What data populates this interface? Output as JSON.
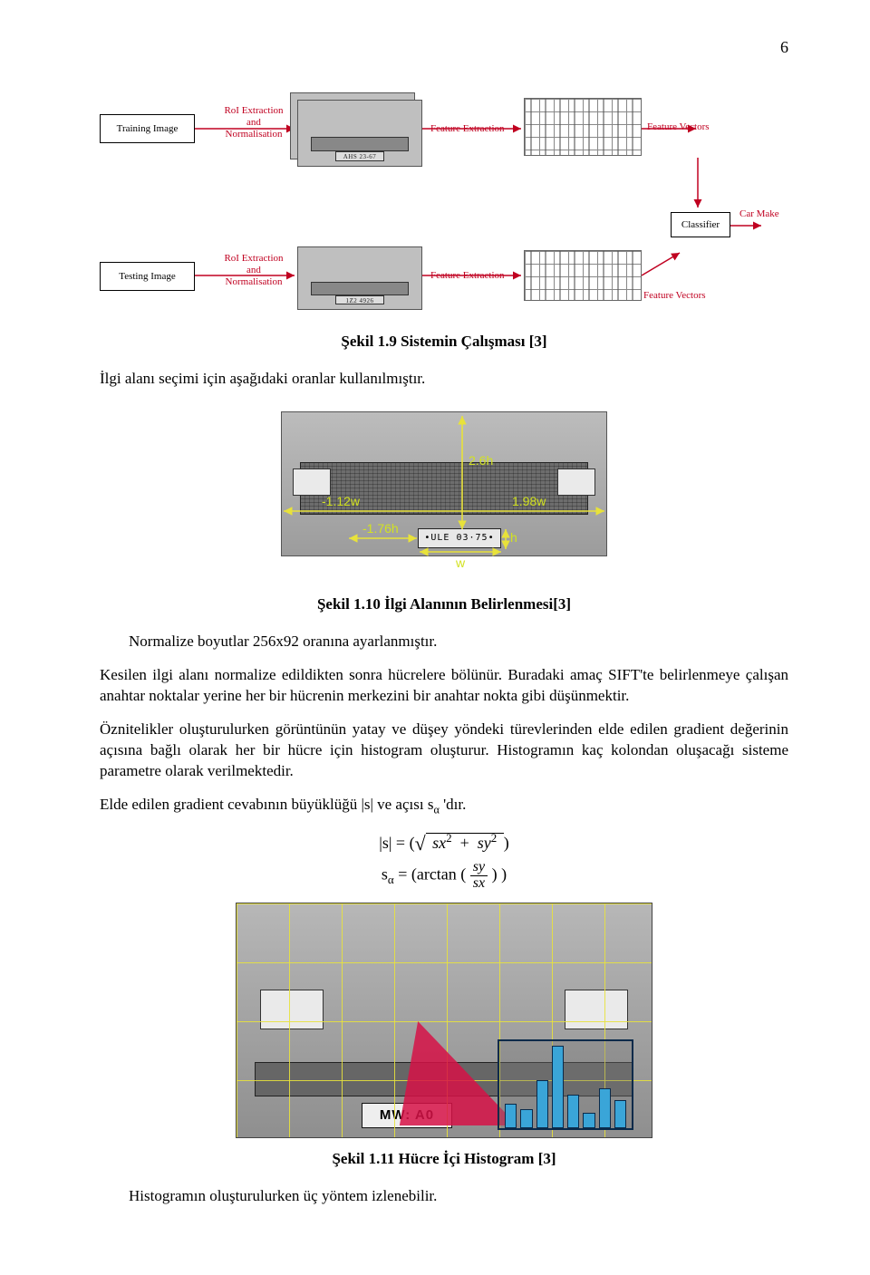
{
  "page_number": "6",
  "fig19": {
    "caption": "Şekil 1.9 Sistemin Çalışması [3]",
    "training_box": "Training Image",
    "testing_box": "Testing Image",
    "classifier_box": "Classifier",
    "roi_label": "RoI Extraction\nand\nNormalisation",
    "feat_label": "Feature Extraction",
    "fv_label": "Feature Vectors",
    "carmake_label": "Car Make",
    "plate1": "AHS 23-67",
    "plate2": "1Z2 4926",
    "arrow_color": "#c00020",
    "label_color": "#c00020"
  },
  "p1": "İlgi alanı seçimi için aşağıdaki oranlar kullanılmıştır.",
  "fig10": {
    "caption": "Şekil 1.10 İlgi Alanının Belirlenmesi[3]",
    "plate": "•ULE 03·75•",
    "labels": {
      "top": "2.6h",
      "left": "-1.12w",
      "right": "1.98w",
      "farleft": "-1.76h",
      "w": "w",
      "h": "h"
    },
    "line_color": "#e8e23a",
    "label_color": "#d2e221"
  },
  "p2": "Normalize boyutlar 256x92 oranına ayarlanmıştır.",
  "p3": "Kesilen ilgi alanı normalize edildikten sonra hücrelere bölünür. Buradaki amaç SIFT'te belirlenmeye çalışan anahtar noktalar yerine her bir hücrenin merkezini bir anahtar nokta gibi düşünmektir.",
  "p4": "Öznitelikler oluşturulurken görüntünün yatay ve düşey yöndeki türevlerinden elde edilen gradient değerinin açısına bağlı olarak her bir hücre için histogram oluşturur. Histogramın kaç kolondan oluşacağı sisteme parametre olarak verilmektedir.",
  "p5": "Elde edilen gradient cevabının büyüklüğü |s| ve açısı s",
  "p5sub": "α",
  "p5tail": " 'dır.",
  "eq1_lhs": "|s| = (",
  "eq1_sx": "sx",
  "eq1_sy": "sy",
  "eq1_two": "2",
  "eq1_rhs": ")",
  "eq2_lhs": "s",
  "eq2_sub": "α",
  "eq2_mid": " = (arctan ( ",
  "eq2_num": "sy",
  "eq2_den": "sx",
  "eq2_rhs": " ) )",
  "fig11": {
    "caption": "Şekil 1.11 Hücre İçi Histogram [3]",
    "plate": "MW: A0",
    "grid_color": "#e8e23a",
    "callout_color": "rgba(214,18,70,.85)",
    "hist_border": "#0a2a4a",
    "hist_bar_color": "#3aa5d8",
    "bars": [
      28,
      22,
      55,
      95,
      38,
      18,
      46,
      32
    ]
  },
  "p6": "Histogramın oluşturulurken üç yöntem izlenebilir."
}
